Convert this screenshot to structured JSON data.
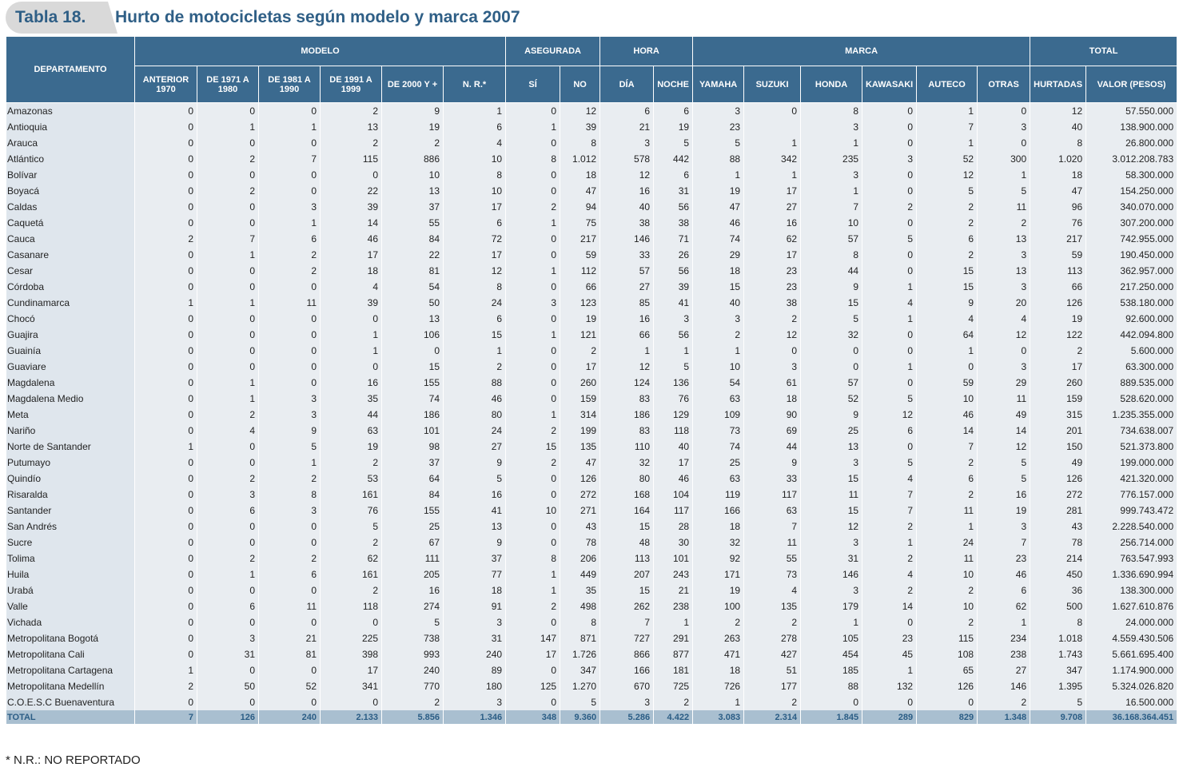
{
  "header": {
    "tab": "Tabla 18.",
    "title": "Hurto de motocicletas según modelo y marca 2007"
  },
  "table": {
    "group_headers": [
      "DEPARTAMENTO",
      "MODELO",
      "ASEGURADA",
      "HORA",
      "MARCA",
      "TOTAL"
    ],
    "column_headers": [
      "ANTERIOR 1970",
      "DE 1971 A 1980",
      "DE 1981 A 1990",
      "DE 1991 A 1999",
      "DE 2000 Y +",
      "N. R.*",
      "SÍ",
      "NO",
      "DÍA",
      "NOCHE",
      "YAMAHA",
      "SUZUKI",
      "HONDA",
      "KAWASAKI",
      "AUTECO",
      "OTRAS",
      "HURTADAS",
      "VALOR (PESOS)"
    ],
    "rows": [
      [
        "Amazonas",
        "0",
        "0",
        "0",
        "2",
        "9",
        "1",
        "0",
        "12",
        "6",
        "6",
        "3",
        "0",
        "8",
        "0",
        "1",
        "0",
        "12",
        "57.550.000"
      ],
      [
        "Antioquia",
        "0",
        "1",
        "1",
        "13",
        "19",
        "6",
        "1",
        "39",
        "21",
        "19",
        "23",
        null,
        "3",
        "0",
        "7",
        "3",
        "40",
        "138.900.000"
      ],
      [
        "Arauca",
        "0",
        "0",
        "0",
        "2",
        "2",
        "4",
        "0",
        "8",
        "3",
        "5",
        "5",
        "1",
        "1",
        "0",
        "1",
        "0",
        "8",
        "26.800.000"
      ],
      [
        "Atlántico",
        "0",
        "2",
        "7",
        "115",
        "886",
        "10",
        "8",
        "1.012",
        "578",
        "442",
        "88",
        "342",
        "235",
        "3",
        "52",
        "300",
        "1.020",
        "3.012.208.783"
      ],
      [
        "Bolívar",
        "0",
        "0",
        "0",
        "0",
        "10",
        "8",
        "0",
        "18",
        "12",
        "6",
        "1",
        "1",
        "3",
        "0",
        "12",
        "1",
        "18",
        "58.300.000"
      ],
      [
        "Boyacá",
        "0",
        "2",
        "0",
        "22",
        "13",
        "10",
        "0",
        "47",
        "16",
        "31",
        "19",
        "17",
        "1",
        "0",
        "5",
        "5",
        "47",
        "154.250.000"
      ],
      [
        "Caldas",
        "0",
        "0",
        "3",
        "39",
        "37",
        "17",
        "2",
        "94",
        "40",
        "56",
        "47",
        "27",
        "7",
        "2",
        "2",
        "11",
        "96",
        "340.070.000"
      ],
      [
        "Caquetá",
        "0",
        "0",
        "1",
        "14",
        "55",
        "6",
        "1",
        "75",
        "38",
        "38",
        "46",
        "16",
        "10",
        "0",
        "2",
        "2",
        "76",
        "307.200.000"
      ],
      [
        "Cauca",
        "2",
        "7",
        "6",
        "46",
        "84",
        "72",
        "0",
        "217",
        "146",
        "71",
        "74",
        "62",
        "57",
        "5",
        "6",
        "13",
        "217",
        "742.955.000"
      ],
      [
        "Casanare",
        "0",
        "1",
        "2",
        "17",
        "22",
        "17",
        "0",
        "59",
        "33",
        "26",
        "29",
        "17",
        "8",
        "0",
        "2",
        "3",
        "59",
        "190.450.000"
      ],
      [
        "Cesar",
        "0",
        "0",
        "2",
        "18",
        "81",
        "12",
        "1",
        "112",
        "57",
        "56",
        "18",
        "23",
        "44",
        "0",
        "15",
        "13",
        "113",
        "362.957.000"
      ],
      [
        "Córdoba",
        "0",
        "0",
        "0",
        "4",
        "54",
        "8",
        "0",
        "66",
        "27",
        "39",
        "15",
        "23",
        "9",
        "1",
        "15",
        "3",
        "66",
        "217.250.000"
      ],
      [
        "Cundinamarca",
        "1",
        "1",
        "11",
        "39",
        "50",
        "24",
        "3",
        "123",
        "85",
        "41",
        "40",
        "38",
        "15",
        "4",
        "9",
        "20",
        "126",
        "538.180.000"
      ],
      [
        "Chocó",
        "0",
        "0",
        "0",
        "0",
        "13",
        "6",
        "0",
        "19",
        "16",
        "3",
        "3",
        "2",
        "5",
        "1",
        "4",
        "4",
        "19",
        "92.600.000"
      ],
      [
        "Guajira",
        "0",
        "0",
        "0",
        "1",
        "106",
        "15",
        "1",
        "121",
        "66",
        "56",
        "2",
        "12",
        "32",
        "0",
        "64",
        "12",
        "122",
        "442.094.800"
      ],
      [
        "Guainía",
        "0",
        "0",
        "0",
        "1",
        "0",
        "1",
        "0",
        "2",
        "1",
        "1",
        "1",
        "0",
        "0",
        "0",
        "1",
        "0",
        "2",
        "5.600.000"
      ],
      [
        "Guaviare",
        "0",
        "0",
        "0",
        "0",
        "15",
        "2",
        "0",
        "17",
        "12",
        "5",
        "10",
        "3",
        "0",
        "1",
        "0",
        "3",
        "17",
        "63.300.000"
      ],
      [
        "Magdalena",
        "0",
        "1",
        "0",
        "16",
        "155",
        "88",
        "0",
        "260",
        "124",
        "136",
        "54",
        "61",
        "57",
        "0",
        "59",
        "29",
        "260",
        "889.535.000"
      ],
      [
        "Magdalena Medio",
        "0",
        "1",
        "3",
        "35",
        "74",
        "46",
        "0",
        "159",
        "83",
        "76",
        "63",
        "18",
        "52",
        "5",
        "10",
        "11",
        "159",
        "528.620.000"
      ],
      [
        "Meta",
        "0",
        "2",
        "3",
        "44",
        "186",
        "80",
        "1",
        "314",
        "186",
        "129",
        "109",
        "90",
        "9",
        "12",
        "46",
        "49",
        "315",
        "1.235.355.000"
      ],
      [
        "Nariño",
        "0",
        "4",
        "9",
        "63",
        "101",
        "24",
        "2",
        "199",
        "83",
        "118",
        "73",
        "69",
        "25",
        "6",
        "14",
        "14",
        "201",
        "734.638.007"
      ],
      [
        "Norte de Santander",
        "1",
        "0",
        "5",
        "19",
        "98",
        "27",
        "15",
        "135",
        "110",
        "40",
        "74",
        "44",
        "13",
        "0",
        "7",
        "12",
        "150",
        "521.373.800"
      ],
      [
        "Putumayo",
        "0",
        "0",
        "1",
        "2",
        "37",
        "9",
        "2",
        "47",
        "32",
        "17",
        "25",
        "9",
        "3",
        "5",
        "2",
        "5",
        "49",
        "199.000.000"
      ],
      [
        "Quindío",
        "0",
        "2",
        "2",
        "53",
        "64",
        "5",
        "0",
        "126",
        "80",
        "46",
        "63",
        "33",
        "15",
        "4",
        "6",
        "5",
        "126",
        "421.320.000"
      ],
      [
        "Risaralda",
        "0",
        "3",
        "8",
        "161",
        "84",
        "16",
        "0",
        "272",
        "168",
        "104",
        "119",
        "117",
        "11",
        "7",
        "2",
        "16",
        "272",
        "776.157.000"
      ],
      [
        "Santander",
        "0",
        "6",
        "3",
        "76",
        "155",
        "41",
        "10",
        "271",
        "164",
        "117",
        "166",
        "63",
        "15",
        "7",
        "11",
        "19",
        "281",
        "999.743.472"
      ],
      [
        "San Andrés",
        "0",
        "0",
        "0",
        "5",
        "25",
        "13",
        "0",
        "43",
        "15",
        "28",
        "18",
        "7",
        "12",
        "2",
        "1",
        "3",
        "43",
        "2.228.540.000"
      ],
      [
        "Sucre",
        "0",
        "0",
        "0",
        "2",
        "67",
        "9",
        "0",
        "78",
        "48",
        "30",
        "32",
        "11",
        "3",
        "1",
        "24",
        "7",
        "78",
        "256.714.000"
      ],
      [
        "Tolima",
        "0",
        "2",
        "2",
        "62",
        "111",
        "37",
        "8",
        "206",
        "113",
        "101",
        "92",
        "55",
        "31",
        "2",
        "11",
        "23",
        "214",
        "763.547.993"
      ],
      [
        "Huila",
        "0",
        "1",
        "6",
        "161",
        "205",
        "77",
        "1",
        "449",
        "207",
        "243",
        "171",
        "73",
        "146",
        "4",
        "10",
        "46",
        "450",
        "1.336.690.994"
      ],
      [
        "Urabá",
        "0",
        "0",
        "0",
        "2",
        "16",
        "18",
        "1",
        "35",
        "15",
        "21",
        "19",
        "4",
        "3",
        "2",
        "2",
        "6",
        "36",
        "138.300.000"
      ],
      [
        "Valle",
        "0",
        "6",
        "11",
        "118",
        "274",
        "91",
        "2",
        "498",
        "262",
        "238",
        "100",
        "135",
        "179",
        "14",
        "10",
        "62",
        "500",
        "1.627.610.876"
      ],
      [
        "Vichada",
        "0",
        "0",
        "0",
        "0",
        "5",
        "3",
        "0",
        "8",
        "7",
        "1",
        "2",
        "2",
        "1",
        "0",
        "2",
        "1",
        "8",
        "24.000.000"
      ],
      [
        "Metropolitana Bogotá",
        "0",
        "3",
        "21",
        "225",
        "738",
        "31",
        "147",
        "871",
        "727",
        "291",
        "263",
        "278",
        "105",
        "23",
        "115",
        "234",
        "1.018",
        "4.559.430.506"
      ],
      [
        "Metropolitana Cali",
        "0",
        "31",
        "81",
        "398",
        "993",
        "240",
        "17",
        "1.726",
        "866",
        "877",
        "471",
        "427",
        "454",
        "45",
        "108",
        "238",
        "1.743",
        "5.661.695.400"
      ],
      [
        "Metropolitana Cartagena",
        "1",
        "0",
        "0",
        "17",
        "240",
        "89",
        "0",
        "347",
        "166",
        "181",
        "18",
        "51",
        "185",
        "1",
        "65",
        "27",
        "347",
        "1.174.900.000"
      ],
      [
        "Metropolitana Medellín",
        "2",
        "50",
        "52",
        "341",
        "770",
        "180",
        "125",
        "1.270",
        "670",
        "725",
        "726",
        "177",
        "88",
        "132",
        "126",
        "146",
        "1.395",
        "5.324.026.820"
      ],
      [
        "C.O.E.S.C Buenaventura",
        "0",
        "0",
        "0",
        "0",
        "2",
        "3",
        "0",
        "5",
        "3",
        "2",
        "1",
        "2",
        "0",
        "0",
        "0",
        "2",
        "5",
        "16.500.000"
      ]
    ],
    "total": [
      "TOTAL",
      "7",
      "126",
      "240",
      "2.133",
      "5.856",
      "1.346",
      "348",
      "9.360",
      "5.286",
      "4.422",
      "3.083",
      "2.314",
      "1.845",
      "289",
      "829",
      "1.348",
      "9.708",
      "36.168.364.451"
    ]
  },
  "footnote": "* N.R.: NO REPORTADO"
}
